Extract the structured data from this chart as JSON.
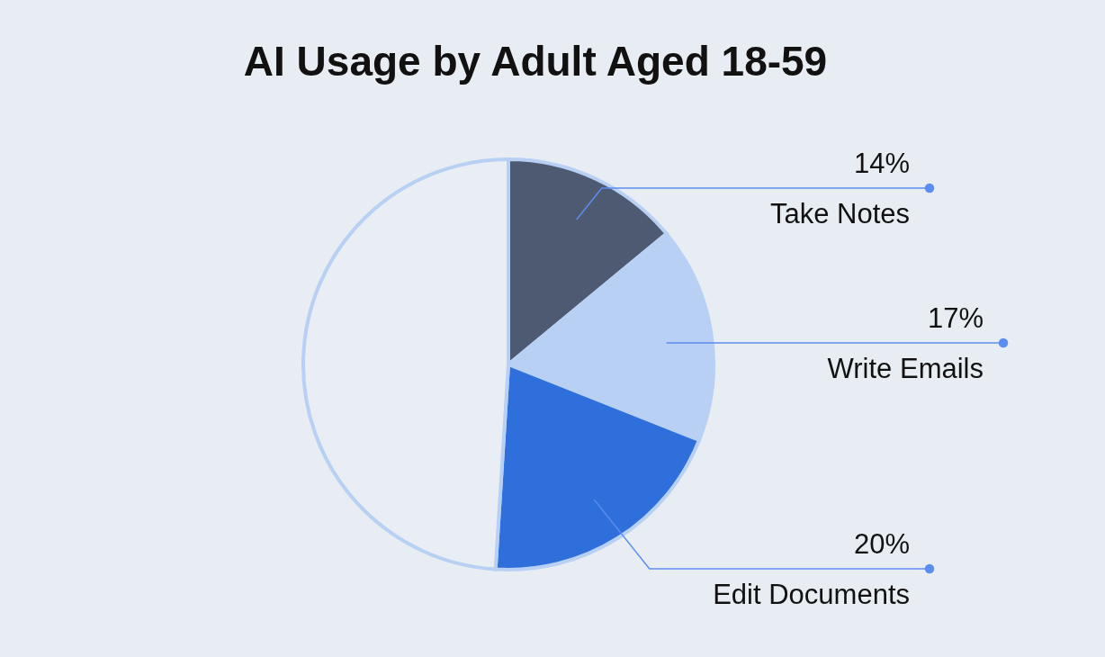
{
  "chart_data": {
    "type": "pie",
    "title": "AI Usage by Adult Aged 18-59",
    "categories": [
      "Take Notes",
      "Write Emails",
      "Edit Documents",
      null
    ],
    "values": [
      14,
      17,
      20,
      49
    ],
    "colors": [
      "#4e5a72",
      "#b8d0f4",
      "#2f6fdc",
      "#e9eef5"
    ],
    "value_labels": [
      "14%",
      "17%",
      "20%",
      null
    ]
  }
}
